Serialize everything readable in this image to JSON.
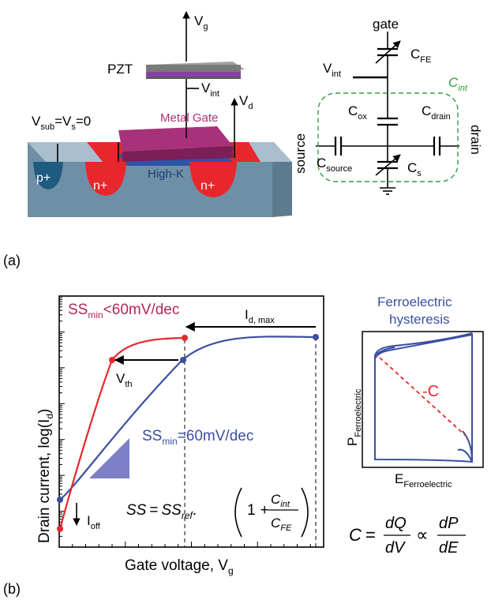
{
  "panel_a": {
    "label": "(a)",
    "device": {
      "pzt_label": "PZT",
      "vg": {
        "main": "V",
        "sub": "g"
      },
      "vint": {
        "main": "V",
        "sub": "int"
      },
      "vd": {
        "main": "V",
        "sub": "d"
      },
      "vsub_label": {
        "a": "V",
        "a_sub": "sub",
        "b": "=V",
        "b_sub": "s",
        "c": "=0"
      },
      "metal_gate_label": "Metal Gate",
      "highk_label": "High-K",
      "p_plus": "p+",
      "n_plus_left": "n+",
      "n_plus_right": "n+",
      "colors": {
        "pzt_top": "#a0a0a0",
        "pzt_purple": "#8a3fa8",
        "metal_gate": "#a8327a",
        "highk": "#2a55a8",
        "n_region": "#e8272c",
        "p_region": "#1f5a80",
        "substrate": "#6f8fa6"
      }
    },
    "circuit": {
      "gate_label": "gate",
      "source_label": "source",
      "drain_label": "drain",
      "vint": {
        "main": "V",
        "sub": "int"
      },
      "cfe": {
        "main": "C",
        "sub": "FE"
      },
      "cint": {
        "main": "C",
        "sub": "int"
      },
      "cox": {
        "main": "C",
        "sub": "ox"
      },
      "cdrain": {
        "main": "C",
        "sub": "drain"
      },
      "csource": {
        "main": "C",
        "sub": "source"
      },
      "cs": {
        "main": "C",
        "sub": "s"
      },
      "cint_color": "#2e9e3e"
    }
  },
  "panel_b": {
    "label": "(b)",
    "ylabel": {
      "main": "Drain current, log(I",
      "sub": "d",
      "end": ")"
    },
    "xlabel": {
      "main": "Gate voltage, V",
      "sub": "g"
    },
    "ss_red": {
      "a": "SS",
      "sub": "min",
      "b": "<60mV/dec"
    },
    "ss_blue": {
      "a": "SS",
      "sub": "min",
      "b": "=60mV/dec"
    },
    "idmax": {
      "main": "I",
      "sub": "d, max"
    },
    "vth": {
      "main": "V",
      "sub": "th"
    },
    "ioff": {
      "main": "I",
      "sub": "off"
    },
    "formula": {
      "ss": "SS",
      "eq": "=",
      "ssref": "SS",
      "ref_sub": "ref",
      "dot": ".",
      "one": "1",
      "plus": "+",
      "num": "C",
      "num_sub": "int",
      "den": "C",
      "den_sub": "FE"
    },
    "colors": {
      "red": "#e8272c",
      "blue": "#3a4fa3",
      "red_text": "#b2285a",
      "triangle": "#7d80c4"
    }
  },
  "hysteresis": {
    "title_line1": "Ferroelectric",
    "title_line2": "hysteresis",
    "ylabel": {
      "main": "P",
      "sub": "Ferroelectric"
    },
    "xlabel": {
      "main": "E",
      "sub": "Ferroelectric"
    },
    "neg_c": "-C",
    "title_color": "#3a4fa3",
    "eq": {
      "c": "C",
      "eq": "=",
      "dq": "dQ",
      "dv": "dV",
      "prop": "∝",
      "dp": "dP",
      "de": "dE"
    }
  },
  "chart_data": {
    "type": "line",
    "title": "",
    "xlabel": "Gate voltage, Vg",
    "ylabel": "Drain current, log(Id)",
    "series": [
      {
        "name": "SSmin<60mV/dec",
        "x": [
          0.0,
          0.5,
          1.0,
          1.4,
          1.9,
          2.5
        ],
        "values": [
          0.15,
          2.5,
          5.9,
          6.5,
          6.65,
          6.7
        ]
      },
      {
        "name": "SSmin=60mV/dec",
        "x": [
          0.0,
          1.0,
          2.0,
          2.5,
          3.5,
          5.0
        ],
        "values": [
          1.05,
          2.3,
          4.6,
          5.6,
          6.55,
          6.7
        ]
      }
    ],
    "markers": {
      "vth_red": [
        1.0,
        5.9
      ],
      "vth_blue": [
        2.45,
        5.9
      ],
      "idmax_red": [
        2.5,
        6.7
      ],
      "idmax_blue": [
        5.0,
        6.7
      ]
    }
  }
}
